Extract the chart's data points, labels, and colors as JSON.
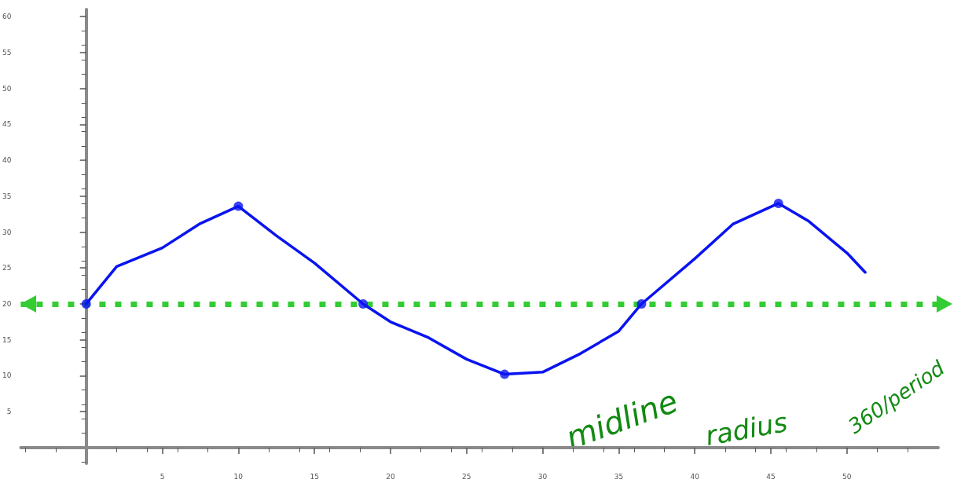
{
  "chart_data": {
    "type": "line",
    "xlim": [
      -4.3,
      56
    ],
    "ylim": [
      -2.2,
      61
    ],
    "xticks": [
      5,
      10,
      15,
      20,
      25,
      30,
      35,
      40,
      45,
      50
    ],
    "yticks": [
      5,
      10,
      15,
      20,
      25,
      30,
      35,
      40,
      45,
      50,
      55,
      60
    ],
    "grid": false,
    "series": [
      {
        "type": "line",
        "color": "#0a14f0",
        "marker": "none",
        "line_style": "solid",
        "x": [
          0,
          2,
          5,
          7.5,
          10,
          12.5,
          15,
          18.2,
          20,
          22.5,
          25,
          27.5,
          30,
          32.5,
          35,
          36.5,
          40,
          42.5,
          45.5,
          47.5,
          50,
          51.2
        ],
        "values": [
          20,
          25.2,
          27.8,
          31.2,
          33.6,
          29.5,
          25.7,
          20,
          17.5,
          15.3,
          12.3,
          10.2,
          10.5,
          13.1,
          16.2,
          20,
          26.3,
          31.1,
          34,
          31.5,
          27.1,
          24.4
        ]
      },
      {
        "type": "scatter",
        "color": "#0a14f0",
        "marker": "circle",
        "x": [
          0,
          10,
          18.2,
          27.5,
          36.5,
          45.5
        ],
        "values": [
          20,
          33.6,
          20,
          10.2,
          20,
          34
        ]
      }
    ],
    "ref_lines": [
      {
        "axis": "y",
        "value": 20,
        "label": "midline",
        "color": "#33cc33",
        "line_style": "dotted"
      }
    ],
    "annotations": [
      "radius",
      "360/period"
    ]
  }
}
